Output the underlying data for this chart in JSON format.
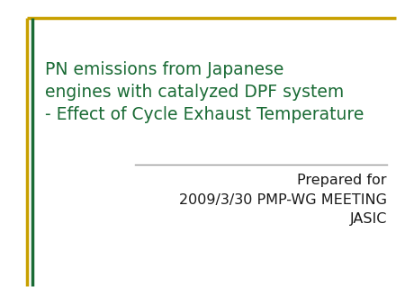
{
  "title_line1": "PN emissions from Japanese",
  "title_line2": "engines with catalyzed DPF system",
  "title_line3": "- Effect of Cycle Exhaust Temperature",
  "title_color": "#1a6b35",
  "subtitle_line1": "Prepared for",
  "subtitle_line2": "2009/3/30 PMP-WG MEETING",
  "subtitle_line3": "JASIC",
  "subtitle_color": "#1a1a1a",
  "bg_color": "#ffffff",
  "border_color_gold": "#c8a000",
  "border_color_green": "#1a6b35",
  "separator_color": "#999999",
  "title_fontsize": 13.5,
  "subtitle_fontsize": 11.5
}
